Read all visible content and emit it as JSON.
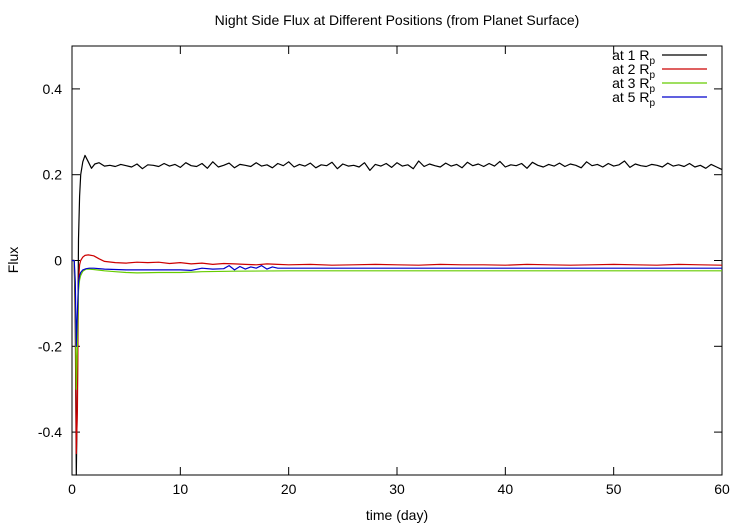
{
  "chart_data": {
    "type": "line",
    "title": "Night Side Flux at Different Positions (from Planet Surface)",
    "xlabel": "time (day)",
    "ylabel": "Flux",
    "xlim": [
      0,
      60
    ],
    "ylim": [
      -0.5,
      0.5
    ],
    "xticks": [
      0,
      10,
      20,
      30,
      40,
      50,
      60
    ],
    "xtick_labels": [
      "0",
      "10",
      "20",
      "30",
      "40",
      "50",
      "60"
    ],
    "yticks": [
      -0.4,
      -0.2,
      0,
      0.2,
      0.4
    ],
    "ytick_labels": [
      "-0.4",
      "-0.2",
      "0",
      "0.2",
      "0.4"
    ],
    "grid": false,
    "legend_position": "top-right",
    "series": [
      {
        "name": "at 1 Rp",
        "legend_base": "at 1 R",
        "legend_sub": "p",
        "color": "#000000",
        "x": [
          0,
          0.2,
          0.3,
          0.4,
          0.5,
          0.6,
          0.7,
          0.8,
          1.0,
          1.2,
          1.5,
          1.8,
          2.1,
          2.5,
          3,
          3.5,
          4,
          4.5,
          5,
          5.5,
          6,
          6.5,
          7,
          7.5,
          8,
          8.5,
          9,
          9.5,
          10,
          10.5,
          11,
          11.5,
          12,
          12.5,
          13,
          13.5,
          14,
          14.5,
          15,
          15.5,
          16,
          16.5,
          17,
          17.5,
          18,
          18.5,
          19,
          19.5,
          20,
          20.5,
          21,
          21.5,
          22,
          22.5,
          23,
          23.5,
          24,
          24.5,
          25,
          25.5,
          26,
          26.5,
          27,
          27.5,
          28,
          28.5,
          29,
          29.5,
          30,
          30.5,
          31,
          31.5,
          32,
          32.5,
          33,
          33.5,
          34,
          34.5,
          35,
          35.5,
          36,
          36.5,
          37,
          37.5,
          38,
          38.5,
          39,
          39.5,
          40,
          40.5,
          41,
          41.5,
          42,
          42.5,
          43,
          43.5,
          44,
          44.5,
          45,
          45.5,
          46,
          46.5,
          47,
          47.5,
          48,
          48.5,
          49,
          49.5,
          50,
          50.5,
          51,
          51.5,
          52,
          52.5,
          53,
          53.5,
          54,
          54.5,
          55,
          55.5,
          56,
          56.5,
          57,
          57.5,
          58,
          58.5,
          59,
          59.5,
          60
        ],
        "y": [
          0,
          0,
          -0.15,
          -0.5,
          -0.3,
          0.05,
          0.15,
          0.2,
          0.23,
          0.245,
          0.23,
          0.215,
          0.225,
          0.228,
          0.22,
          0.222,
          0.219,
          0.224,
          0.221,
          0.218,
          0.225,
          0.214,
          0.223,
          0.222,
          0.219,
          0.226,
          0.22,
          0.224,
          0.217,
          0.228,
          0.221,
          0.219,
          0.226,
          0.215,
          0.23,
          0.218,
          0.222,
          0.227,
          0.216,
          0.224,
          0.222,
          0.219,
          0.228,
          0.22,
          0.223,
          0.216,
          0.226,
          0.221,
          0.23,
          0.218,
          0.224,
          0.22,
          0.227,
          0.216,
          0.223,
          0.221,
          0.229,
          0.214,
          0.225,
          0.22,
          0.222,
          0.218,
          0.228,
          0.21,
          0.224,
          0.22,
          0.226,
          0.217,
          0.228,
          0.22,
          0.223,
          0.214,
          0.232,
          0.219,
          0.225,
          0.221,
          0.218,
          0.227,
          0.22,
          0.224,
          0.216,
          0.229,
          0.221,
          0.225,
          0.219,
          0.226,
          0.22,
          0.231,
          0.218,
          0.223,
          0.221,
          0.226,
          0.215,
          0.229,
          0.222,
          0.218,
          0.224,
          0.22,
          0.227,
          0.219,
          0.225,
          0.222,
          0.216,
          0.23,
          0.221,
          0.224,
          0.218,
          0.226,
          0.22,
          0.223,
          0.232,
          0.217,
          0.225,
          0.221,
          0.219,
          0.224,
          0.222,
          0.218,
          0.227,
          0.22,
          0.223,
          0.219,
          0.226,
          0.218,
          0.222,
          0.215,
          0.224,
          0.218,
          0.212
        ]
      },
      {
        "name": "at 2 Rp",
        "legend_base": "at 2 R",
        "legend_sub": "p",
        "color": "#cc0000",
        "x": [
          0,
          0.2,
          0.3,
          0.4,
          0.5,
          0.6,
          0.7,
          0.8,
          1.0,
          1.2,
          1.5,
          2,
          2.5,
          3,
          4,
          5,
          6,
          7,
          8,
          9,
          10,
          11,
          12,
          13,
          14,
          15,
          16,
          17,
          18,
          19,
          20,
          22,
          24,
          26,
          28,
          30,
          32,
          34,
          36,
          38,
          40,
          42,
          44,
          46,
          48,
          50,
          52,
          54,
          56,
          58,
          60
        ],
        "y": [
          0,
          0,
          -0.1,
          -0.45,
          -0.35,
          -0.05,
          -0.01,
          0.0,
          0.008,
          0.012,
          0.013,
          0.011,
          0.004,
          -0.002,
          -0.005,
          -0.006,
          -0.004,
          -0.005,
          -0.004,
          -0.007,
          -0.005,
          -0.008,
          -0.006,
          -0.009,
          -0.007,
          -0.008,
          -0.009,
          -0.01,
          -0.008,
          -0.009,
          -0.01,
          -0.009,
          -0.011,
          -0.01,
          -0.009,
          -0.01,
          -0.011,
          -0.009,
          -0.01,
          -0.01,
          -0.011,
          -0.009,
          -0.01,
          -0.011,
          -0.01,
          -0.009,
          -0.01,
          -0.011,
          -0.009,
          -0.01,
          -0.011
        ]
      },
      {
        "name": "at 3 Rp",
        "legend_base": "at 3 R",
        "legend_sub": "p",
        "color": "#66cc00",
        "x": [
          0,
          0.2,
          0.3,
          0.4,
          0.5,
          0.6,
          0.7,
          0.8,
          1.0,
          1.3,
          1.6,
          2,
          3,
          4,
          5,
          6,
          8,
          10,
          11,
          12,
          15,
          20,
          25,
          30,
          35,
          40,
          45,
          50,
          55,
          60
        ],
        "y": [
          0,
          0,
          -0.08,
          -0.3,
          -0.2,
          -0.07,
          -0.045,
          -0.035,
          -0.025,
          -0.02,
          -0.02,
          -0.021,
          -0.024,
          -0.026,
          -0.028,
          -0.029,
          -0.028,
          -0.028,
          -0.027,
          -0.026,
          -0.025,
          -0.024,
          -0.024,
          -0.024,
          -0.024,
          -0.024,
          -0.024,
          -0.024,
          -0.024,
          -0.024
        ]
      },
      {
        "name": "at 5 Rp",
        "legend_base": "at 5 R",
        "legend_sub": "p",
        "color": "#0000cc",
        "x": [
          0,
          0.2,
          0.3,
          0.4,
          0.5,
          0.6,
          0.7,
          0.8,
          1.0,
          1.3,
          1.6,
          2,
          3,
          4,
          5,
          6,
          8,
          10,
          11,
          12,
          13,
          14,
          14.5,
          15,
          15.5,
          16,
          16.5,
          17,
          17.5,
          18,
          18.5,
          19,
          20,
          25,
          30,
          35,
          40,
          45,
          50,
          55,
          60
        ],
        "y": [
          0,
          0,
          -0.05,
          -0.2,
          -0.12,
          -0.05,
          -0.035,
          -0.028,
          -0.022,
          -0.019,
          -0.018,
          -0.018,
          -0.02,
          -0.021,
          -0.022,
          -0.022,
          -0.022,
          -0.022,
          -0.023,
          -0.018,
          -0.02,
          -0.019,
          -0.012,
          -0.022,
          -0.014,
          -0.02,
          -0.015,
          -0.018,
          -0.012,
          -0.02,
          -0.015,
          -0.018,
          -0.018,
          -0.018,
          -0.018,
          -0.018,
          -0.018,
          -0.018,
          -0.018,
          -0.018,
          -0.018
        ]
      }
    ]
  }
}
